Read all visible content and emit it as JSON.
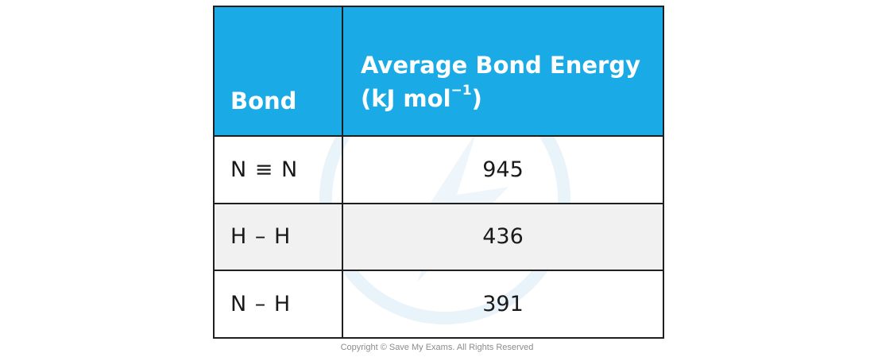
{
  "table": {
    "headers": {
      "bond": "Bond",
      "energy_line1": "Average Bond Energy",
      "energy_unit_prefix": "(kJ mol",
      "energy_unit_sup": "−1",
      "energy_unit_suffix": ")"
    },
    "rows": [
      {
        "bond": "N ≡ N",
        "energy": "945"
      },
      {
        "bond": "H – H",
        "energy": "436"
      },
      {
        "bond": "N – H",
        "energy": "391"
      }
    ]
  },
  "footer": {
    "copyright": "Copyright © Save My Exams. All Rights Reserved"
  },
  "colors": {
    "header_bg": "#1aabe6",
    "header_text": "#ffffff",
    "border": "#1f1f1f",
    "shaded_row": "#f1f1f1"
  },
  "icons": {
    "watermark": "save-my-exams-logo-watermark"
  }
}
